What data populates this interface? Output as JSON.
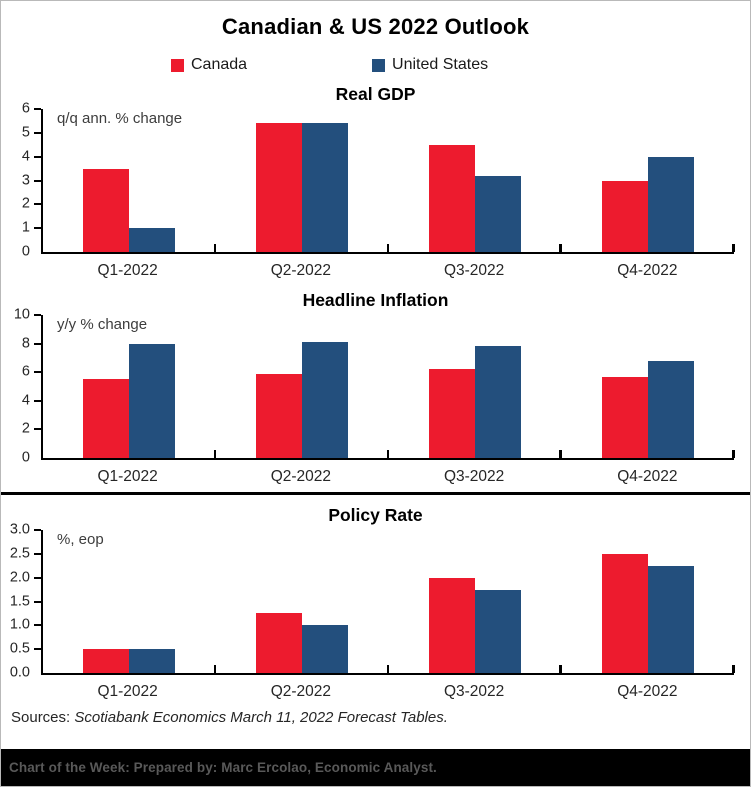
{
  "header": {
    "title": "Canadian & US 2022 Outlook"
  },
  "legend": {
    "items": [
      {
        "label": "Canada",
        "color": "#ED1B2E"
      },
      {
        "label": "United States",
        "color": "#234F7D"
      }
    ]
  },
  "colors": {
    "canada_red": "#ED1B2E",
    "us_blue": "#234F7D",
    "axis_black": "#000000",
    "footer_text_gray": "#595959"
  },
  "chart_data": [
    {
      "type": "bar",
      "title": "Real GDP",
      "axis_label": "q/q ann. % change",
      "categories": [
        "Q1-2022",
        "Q2-2022",
        "Q3-2022",
        "Q4-2022"
      ],
      "series": [
        {
          "name": "Canada",
          "color": "#ED1B2E",
          "values": [
            3.5,
            5.4,
            4.5,
            3.0
          ]
        },
        {
          "name": "United States",
          "color": "#234F7D",
          "values": [
            1.0,
            5.4,
            3.2,
            4.0
          ]
        }
      ],
      "ylim": [
        0,
        6
      ],
      "ytick_values": [
        0,
        1,
        2,
        3,
        4,
        5,
        6
      ],
      "ytick_labels": [
        "0",
        "1",
        "2",
        "3",
        "4",
        "5",
        "6"
      ],
      "grid": false,
      "legend_position": "top"
    },
    {
      "type": "bar",
      "title": "Headline Inflation",
      "axis_label": "y/y % change",
      "categories": [
        "Q1-2022",
        "Q2-2022",
        "Q3-2022",
        "Q4-2022"
      ],
      "series": [
        {
          "name": "Canada",
          "color": "#ED1B2E",
          "values": [
            5.5,
            5.9,
            6.2,
            5.7
          ]
        },
        {
          "name": "United States",
          "color": "#234F7D",
          "values": [
            8.0,
            8.1,
            7.8,
            6.8
          ]
        }
      ],
      "ylim": [
        0,
        10
      ],
      "ytick_values": [
        0,
        2,
        4,
        6,
        8,
        10
      ],
      "ytick_labels": [
        "0",
        "2",
        "4",
        "6",
        "8",
        "10"
      ],
      "grid": false,
      "legend_position": "top"
    },
    {
      "type": "bar",
      "title": "Policy Rate",
      "axis_label": "%, eop",
      "categories": [
        "Q1-2022",
        "Q2-2022",
        "Q3-2022",
        "Q4-2022"
      ],
      "series": [
        {
          "name": "Canada",
          "color": "#ED1B2E",
          "values": [
            0.5,
            1.25,
            2.0,
            2.5
          ]
        },
        {
          "name": "United States",
          "color": "#234F7D",
          "values": [
            0.5,
            1.0,
            1.75,
            2.25
          ]
        }
      ],
      "ylim": [
        0,
        3
      ],
      "ytick_values": [
        0,
        0.5,
        1.0,
        1.5,
        2.0,
        2.5,
        3.0
      ],
      "ytick_labels": [
        "0.0",
        "0.5",
        "1.0",
        "1.5",
        "2.0",
        "2.5",
        "3.0"
      ],
      "grid": false,
      "legend_position": "top"
    }
  ],
  "sources": {
    "prefix": "Sources: ",
    "text": "Scotiabank Economics March 11, 2022 Forecast Tables."
  },
  "footer": {
    "text": "Chart of the Week:  Prepared by: Marc Ercolao, Economic Analyst."
  }
}
